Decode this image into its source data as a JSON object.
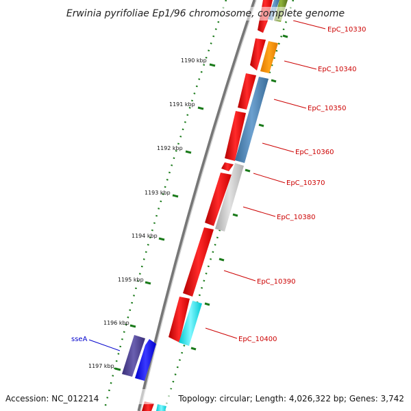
{
  "title": "Erwinia pyrifoliae Ep1/96 chromosome, complete genome",
  "footer": {
    "accession": "Accession: NC_012214",
    "topology": "Topology: circular; Length: 4,026,322 bp; Genes: 3,742"
  },
  "kbp_labels": [
    "1190 kbp",
    "1191 kbp",
    "1192 kbp",
    "1193 kbp",
    "1194 kbp",
    "1195 kbp",
    "1196 kbp",
    "1197 kbp"
  ],
  "gene_labels": [
    "EpC_10330",
    "EpC_10340",
    "EpC_10350",
    "EpC_10360",
    "EpC_10370",
    "EpC_10380",
    "EpC_10390",
    "EpC_10400",
    "sseA"
  ],
  "colors": {
    "label_red": "#cc0000",
    "label_blue": "#0000cc",
    "backbone": "#777777",
    "tick_green": "#1a7a1a",
    "gene_red": "#ff0000",
    "gene_orange": "#ff8c00",
    "gene_steelblue": "#4682b4",
    "gene_gray": "#c8c8c8",
    "gene_cyan": "#00e5ee",
    "gene_blue": "#0000ff",
    "gene_slate": "#483d8b",
    "gene_olive": "#6b8e23"
  }
}
